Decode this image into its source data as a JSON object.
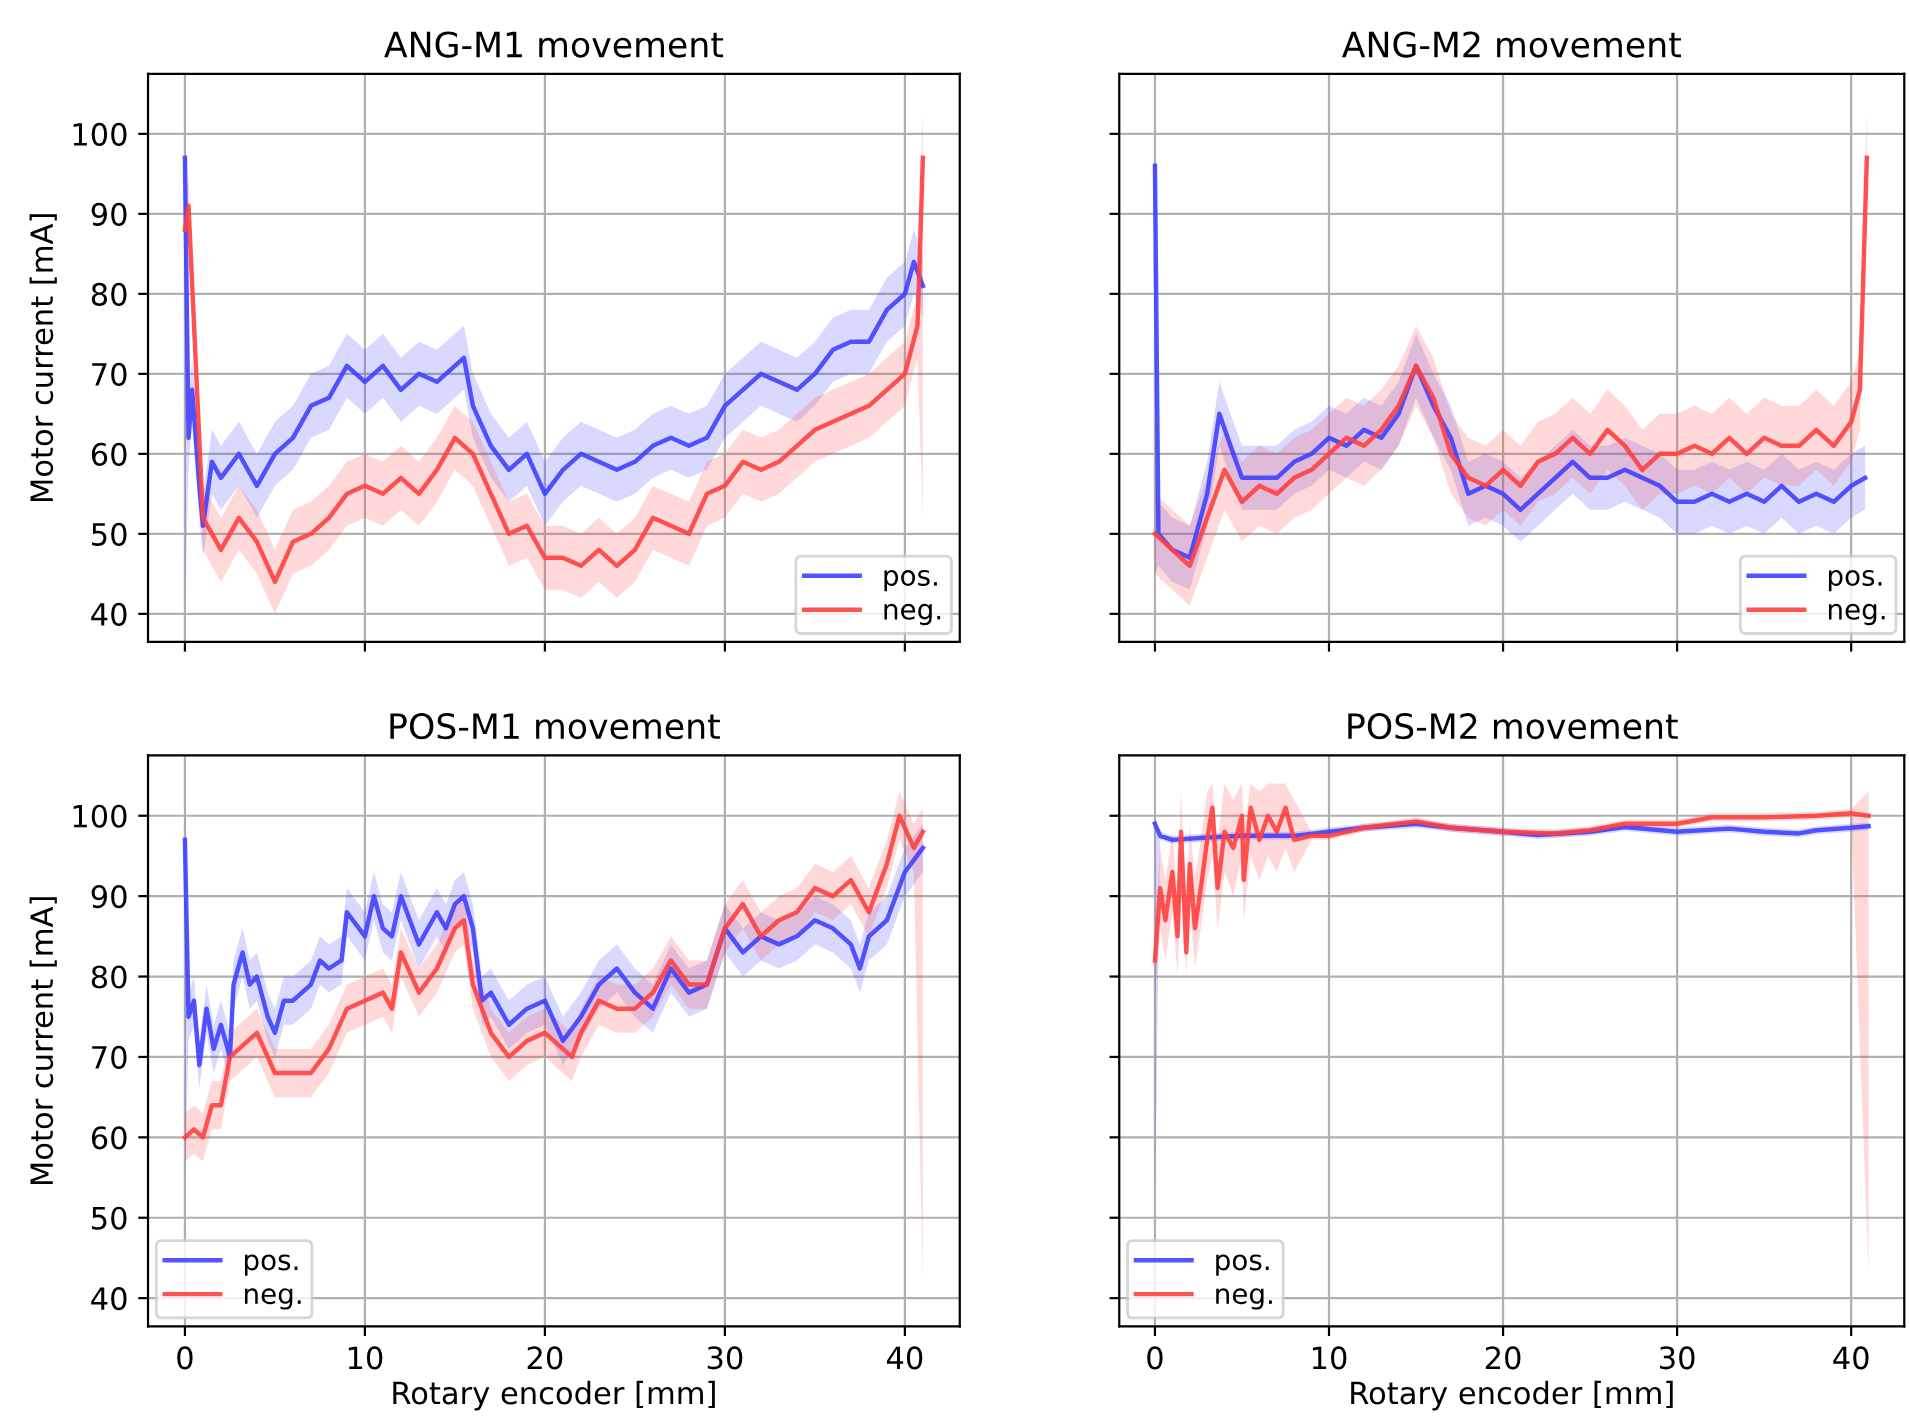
{
  "chart_data": [
    {
      "type": "line",
      "title": "ANG-M1 movement",
      "ylabel": "Motor current [mA]",
      "xlim": [
        -2.05,
        43.05
      ],
      "ylim": [
        36.5,
        107.5
      ],
      "xticks": [
        0,
        10,
        20,
        30,
        40
      ],
      "yticks": [
        40,
        50,
        60,
        70,
        80,
        90,
        100
      ],
      "grid": true,
      "legend": "lower right",
      "tick_labels": "y",
      "series": [
        {
          "name": "pos.",
          "color": "#4040ff",
          "x": [
            0,
            0.2,
            0.4,
            0.8,
            1,
            1.5,
            2,
            3,
            4,
            5,
            6,
            7,
            8,
            9,
            10,
            11,
            12,
            13,
            14,
            15,
            15.5,
            16,
            17,
            18,
            19,
            20,
            21,
            22,
            23,
            24,
            25,
            26,
            27,
            28,
            29,
            30,
            31,
            32,
            33,
            34,
            35,
            36,
            37,
            38,
            39,
            40,
            40.5,
            41
          ],
          "values": [
            97,
            62,
            68,
            56,
            51,
            59,
            57,
            60,
            56,
            60,
            62,
            66,
            67,
            71,
            69,
            71,
            68,
            70,
            69,
            71,
            72,
            66,
            61,
            58,
            60,
            55,
            58,
            60,
            59,
            58,
            59,
            61,
            62,
            61,
            62,
            66,
            68,
            70,
            69,
            68,
            70,
            73,
            74,
            74,
            78,
            80,
            84,
            81
          ],
          "lower": [
            40,
            58,
            64,
            52,
            47,
            55,
            53,
            56,
            52,
            56,
            58,
            62,
            63,
            67,
            65,
            67,
            64,
            66,
            65,
            67,
            68,
            62,
            57,
            54,
            56,
            51,
            54,
            56,
            55,
            54,
            55,
            57,
            58,
            57,
            58,
            62,
            64,
            66,
            65,
            64,
            66,
            69,
            70,
            70,
            74,
            76,
            80,
            77
          ],
          "upper": [
            102,
            66,
            72,
            60,
            55,
            63,
            61,
            64,
            60,
            64,
            66,
            70,
            71,
            75,
            73,
            75,
            72,
            74,
            73,
            75,
            76,
            70,
            65,
            62,
            64,
            59,
            62,
            64,
            63,
            62,
            63,
            65,
            66,
            65,
            66,
            70,
            72,
            74,
            73,
            72,
            74,
            77,
            78,
            78,
            82,
            84,
            88,
            85
          ]
        },
        {
          "name": "neg.",
          "color": "#ff4040",
          "x": [
            0,
            0.2,
            1,
            2,
            3,
            4,
            5,
            6,
            7,
            8,
            9,
            10,
            11,
            12,
            13,
            14,
            15,
            16,
            17,
            18,
            19,
            20,
            21,
            22,
            23,
            24,
            25,
            26,
            27,
            28,
            29,
            30,
            31,
            32,
            33,
            34,
            35,
            36,
            37,
            38,
            39,
            40,
            40.7,
            41
          ],
          "values": [
            88,
            91,
            52,
            48,
            52,
            49,
            44,
            49,
            50,
            52,
            55,
            56,
            55,
            57,
            55,
            58,
            62,
            60,
            55,
            50,
            51,
            47,
            47,
            46,
            48,
            46,
            48,
            52,
            51,
            50,
            55,
            56,
            59,
            58,
            59,
            61,
            63,
            64,
            65,
            66,
            68,
            70,
            76,
            97
          ],
          "lower": [
            84,
            87,
            48,
            44,
            48,
            45,
            40,
            45,
            46,
            48,
            51,
            52,
            51,
            53,
            51,
            54,
            58,
            56,
            51,
            46,
            47,
            43,
            43,
            42,
            44,
            42,
            44,
            48,
            47,
            46,
            51,
            52,
            55,
            54,
            55,
            57,
            59,
            60,
            61,
            62,
            64,
            66,
            72,
            52
          ],
          "upper": [
            92,
            95,
            56,
            52,
            56,
            53,
            48,
            53,
            54,
            56,
            59,
            60,
            59,
            61,
            59,
            62,
            66,
            64,
            59,
            54,
            55,
            51,
            51,
            50,
            52,
            50,
            52,
            56,
            55,
            54,
            59,
            60,
            63,
            62,
            63,
            65,
            67,
            68,
            69,
            70,
            72,
            74,
            80,
            103
          ]
        }
      ]
    },
    {
      "type": "line",
      "title": "ANG-M2 movement",
      "xlim": [
        -2.05,
        43.05
      ],
      "ylim": [
        36.5,
        107.5
      ],
      "xticks": [
        0,
        10,
        20,
        30,
        40
      ],
      "yticks": [
        40,
        50,
        60,
        70,
        80,
        90,
        100
      ],
      "grid": true,
      "legend": "lower right",
      "tick_labels": false,
      "series": [
        {
          "name": "pos.",
          "color": "#4040ff",
          "x": [
            0,
            0.2,
            1,
            2,
            3,
            3.7,
            4.5,
            5,
            7,
            8,
            9,
            10,
            11,
            12,
            13,
            14,
            15,
            16,
            17,
            18,
            19,
            20,
            21,
            22,
            23,
            24,
            25,
            26,
            27,
            28,
            29,
            30,
            31,
            32,
            33,
            34,
            35,
            36,
            37,
            38,
            39,
            40,
            40.8
          ],
          "values": [
            96,
            50,
            48,
            47,
            55,
            65,
            60,
            57,
            57,
            59,
            60,
            62,
            61,
            63,
            62,
            65,
            71,
            66,
            62,
            55,
            56,
            55,
            53,
            55,
            57,
            59,
            57,
            57,
            58,
            57,
            56,
            54,
            54,
            55,
            54,
            55,
            54,
            56,
            54,
            55,
            54,
            56,
            57
          ],
          "lower": [
            45,
            46,
            44,
            43,
            51,
            61,
            56,
            53,
            53,
            55,
            56,
            58,
            57,
            59,
            58,
            61,
            67,
            62,
            58,
            51,
            52,
            51,
            49,
            51,
            53,
            55,
            53,
            53,
            54,
            53,
            52,
            50,
            50,
            51,
            50,
            51,
            50,
            52,
            50,
            51,
            50,
            52,
            53
          ],
          "upper": [
            100,
            54,
            52,
            51,
            59,
            69,
            64,
            61,
            61,
            63,
            64,
            66,
            65,
            67,
            66,
            69,
            75,
            70,
            66,
            59,
            60,
            59,
            57,
            59,
            61,
            63,
            61,
            61,
            62,
            61,
            60,
            58,
            58,
            59,
            58,
            59,
            58,
            60,
            58,
            59,
            58,
            60,
            61
          ]
        },
        {
          "name": "neg.",
          "color": "#ff4040",
          "x": [
            0,
            1,
            2,
            3,
            4,
            5,
            6,
            7,
            8,
            9,
            10,
            11,
            12,
            13,
            14,
            15,
            16,
            17,
            18,
            19,
            20,
            21,
            22,
            23,
            24,
            25,
            26,
            27,
            28,
            29,
            30,
            31,
            32,
            33,
            34,
            35,
            36,
            37,
            38,
            39,
            40,
            40.5,
            40.9
          ],
          "values": [
            50,
            48,
            46,
            52,
            58,
            54,
            56,
            55,
            57,
            58,
            60,
            62,
            61,
            63,
            66,
            71,
            67,
            60,
            57,
            56,
            58,
            56,
            59,
            60,
            62,
            60,
            63,
            61,
            58,
            60,
            60,
            61,
            60,
            62,
            60,
            62,
            61,
            61,
            63,
            61,
            64,
            68,
            97
          ],
          "lower": [
            45,
            43,
            41,
            47,
            53,
            49,
            51,
            50,
            52,
            53,
            55,
            57,
            56,
            58,
            61,
            66,
            62,
            55,
            52,
            51,
            53,
            51,
            54,
            55,
            57,
            55,
            58,
            56,
            53,
            55,
            55,
            56,
            55,
            57,
            55,
            57,
            56,
            56,
            58,
            56,
            59,
            63,
            92
          ],
          "upper": [
            55,
            53,
            51,
            57,
            63,
            59,
            61,
            60,
            62,
            63,
            65,
            67,
            66,
            68,
            71,
            76,
            72,
            65,
            62,
            61,
            63,
            61,
            64,
            65,
            67,
            65,
            68,
            66,
            63,
            65,
            65,
            66,
            65,
            67,
            65,
            67,
            66,
            66,
            68,
            66,
            69,
            73,
            103
          ]
        }
      ]
    },
    {
      "type": "line",
      "title": "POS-M1 movement",
      "xlabel": "Rotary encoder [mm]",
      "ylabel": "Motor current [mA]",
      "xlim": [
        -2.05,
        43.05
      ],
      "ylim": [
        36.5,
        107.5
      ],
      "xticks": [
        0,
        10,
        20,
        30,
        40
      ],
      "yticks": [
        40,
        50,
        60,
        70,
        80,
        90,
        100
      ],
      "grid": true,
      "legend": "lower left",
      "series": [
        {
          "name": "pos.",
          "color": "#4040ff",
          "x": [
            0,
            0.2,
            0.5,
            0.8,
            1.2,
            1.6,
            2,
            2.5,
            2.7,
            3.2,
            3.6,
            4,
            4.6,
            5,
            5.5,
            6,
            7,
            7.5,
            8,
            8.7,
            9,
            10,
            10.5,
            11,
            11.5,
            12,
            12.5,
            13,
            14,
            14.5,
            15,
            15.5,
            16,
            16.5,
            17,
            18,
            19,
            20,
            21,
            22,
            23,
            24,
            25,
            26,
            27,
            28,
            29,
            30,
            31,
            32,
            33,
            34,
            35,
            36,
            37,
            37.5,
            38,
            39,
            40,
            41
          ],
          "values": [
            97,
            75,
            77,
            69,
            76,
            71,
            74,
            70,
            79,
            83,
            79,
            80,
            75,
            73,
            77,
            77,
            79,
            82,
            81,
            82,
            88,
            85,
            90,
            86,
            85,
            90,
            87,
            84,
            88,
            86,
            89,
            90,
            86,
            77,
            78,
            74,
            76,
            77,
            72,
            75,
            79,
            81,
            78,
            76,
            81,
            78,
            79,
            86,
            83,
            85,
            84,
            85,
            87,
            86,
            84,
            81,
            85,
            87,
            93,
            96
          ],
          "lower": [
            53,
            72,
            74,
            66,
            73,
            68,
            71,
            67,
            76,
            80,
            76,
            77,
            72,
            70,
            74,
            74,
            76,
            79,
            78,
            79,
            85,
            82,
            87,
            83,
            82,
            87,
            84,
            81,
            85,
            83,
            86,
            87,
            83,
            74,
            75,
            71,
            73,
            74,
            69,
            72,
            76,
            78,
            75,
            73,
            78,
            75,
            76,
            83,
            80,
            82,
            81,
            82,
            84,
            83,
            81,
            78,
            82,
            84,
            90,
            93
          ],
          "upper": [
            103,
            78,
            80,
            72,
            79,
            74,
            77,
            73,
            82,
            86,
            82,
            83,
            78,
            76,
            80,
            80,
            82,
            85,
            84,
            85,
            91,
            88,
            93,
            89,
            88,
            93,
            90,
            87,
            91,
            89,
            92,
            93,
            89,
            80,
            81,
            77,
            79,
            80,
            75,
            78,
            82,
            84,
            81,
            79,
            84,
            81,
            82,
            89,
            86,
            88,
            87,
            88,
            90,
            89,
            87,
            84,
            88,
            90,
            96,
            99
          ]
        },
        {
          "name": "neg.",
          "color": "#ff4040",
          "x": [
            0,
            0.5,
            1,
            1.5,
            2,
            2.5,
            3,
            4,
            5,
            6,
            7,
            8,
            9,
            10,
            11,
            11.5,
            12,
            13,
            14,
            15,
            15.5,
            16,
            17,
            18,
            19,
            20,
            21,
            21.5,
            22,
            23,
            24,
            25,
            26,
            27,
            28,
            29,
            30,
            31,
            32,
            33,
            34,
            35,
            36,
            37,
            38,
            39,
            39.7,
            40.5,
            41
          ],
          "values": [
            60,
            61,
            60,
            64,
            64,
            70,
            71,
            73,
            68,
            68,
            68,
            71,
            76,
            77,
            78,
            76,
            83,
            78,
            81,
            86,
            87,
            79,
            73,
            70,
            72,
            73,
            71,
            70,
            73,
            77,
            76,
            76,
            78,
            82,
            79,
            79,
            86,
            89,
            85,
            87,
            88,
            91,
            90,
            92,
            88,
            94,
            100,
            96,
            98
          ],
          "lower": [
            57,
            58,
            57,
            61,
            61,
            67,
            68,
            70,
            65,
            65,
            65,
            68,
            73,
            74,
            75,
            73,
            80,
            75,
            78,
            83,
            84,
            76,
            70,
            67,
            69,
            70,
            68,
            67,
            70,
            74,
            73,
            73,
            75,
            79,
            76,
            76,
            83,
            86,
            82,
            84,
            85,
            88,
            87,
            89,
            85,
            91,
            97,
            93,
            42
          ],
          "upper": [
            63,
            64,
            63,
            67,
            67,
            73,
            74,
            76,
            71,
            71,
            71,
            74,
            79,
            80,
            81,
            79,
            86,
            81,
            84,
            89,
            90,
            82,
            76,
            73,
            75,
            76,
            74,
            73,
            76,
            80,
            79,
            79,
            81,
            85,
            82,
            82,
            89,
            92,
            88,
            90,
            91,
            94,
            93,
            95,
            91,
            97,
            103,
            99,
            101
          ]
        }
      ]
    },
    {
      "type": "line",
      "title": "POS-M2 movement",
      "xlabel": "Rotary encoder [mm]",
      "xlim": [
        -2.05,
        43.05
      ],
      "ylim": [
        36.5,
        107.5
      ],
      "xticks": [
        0,
        10,
        20,
        30,
        40
      ],
      "yticks": [
        40,
        50,
        60,
        70,
        80,
        90,
        100
      ],
      "grid": true,
      "legend": "lower left",
      "tick_labels": "x",
      "series": [
        {
          "name": "pos.",
          "color": "#4040ff",
          "x": [
            0,
            0.3,
            1,
            3,
            5,
            8,
            10,
            12,
            15,
            17,
            20,
            22,
            25,
            27,
            30,
            33,
            35,
            37,
            38,
            40,
            41
          ],
          "values": [
            99,
            97.5,
            97,
            97.3,
            97.5,
            97.5,
            98,
            98.5,
            99,
            98.5,
            98,
            97.6,
            98,
            98.6,
            98,
            98.4,
            98,
            97.8,
            98.2,
            98.5,
            98.7
          ],
          "lower": [
            52,
            97,
            96.5,
            96.8,
            97,
            97,
            97.5,
            98,
            98.5,
            98,
            97.5,
            97.1,
            97.5,
            98.1,
            97.5,
            97.9,
            97.5,
            97.3,
            97.7,
            98,
            98.2
          ],
          "upper": [
            99.5,
            98,
            97.5,
            97.8,
            98,
            98,
            98.5,
            99,
            99.5,
            99,
            98.5,
            98.1,
            98.5,
            99.1,
            98.5,
            98.9,
            98.5,
            98.3,
            98.7,
            99,
            99.2
          ]
        },
        {
          "name": "neg.",
          "color": "#ff4040",
          "x": [
            0,
            0.3,
            0.6,
            1,
            1.3,
            1.5,
            1.8,
            2,
            2.3,
            2.7,
            3,
            3.3,
            3.6,
            4,
            4.5,
            5,
            5.1,
            5.5,
            6,
            6.5,
            7,
            7.5,
            8,
            9,
            10,
            12,
            15,
            17,
            20,
            23,
            25,
            27,
            30,
            32,
            35,
            38,
            40,
            41
          ],
          "values": [
            82,
            91,
            87,
            93,
            85,
            98,
            83,
            94,
            86,
            92,
            97,
            101,
            91,
            98,
            96,
            100,
            92,
            101,
            97,
            100,
            98,
            101,
            97,
            97.5,
            97.5,
            98.5,
            99.3,
            98.5,
            98,
            97.8,
            98.2,
            99,
            99,
            99.8,
            99.8,
            100,
            100.3,
            100
          ],
          "lower": [
            78,
            86,
            82,
            88,
            80,
            92,
            80,
            89,
            81,
            87,
            92,
            95,
            86,
            93,
            90,
            95,
            87,
            95,
            92,
            95,
            93,
            96,
            93,
            97,
            97,
            98,
            98.8,
            98,
            97.5,
            97.3,
            97.7,
            98.5,
            98.5,
            99.3,
            99.3,
            99.5,
            99.8,
            43
          ],
          "upper": [
            86,
            96,
            92,
            98,
            90,
            103,
            88,
            99,
            92,
            98,
            103,
            104,
            97,
            104,
            102,
            104,
            98,
            104,
            103,
            104,
            104,
            104,
            102,
            98,
            98,
            99,
            99.8,
            99,
            98.5,
            98.3,
            98.7,
            99.5,
            99.5,
            100.3,
            100.3,
            100.5,
            100.8,
            103
          ]
        }
      ]
    }
  ]
}
